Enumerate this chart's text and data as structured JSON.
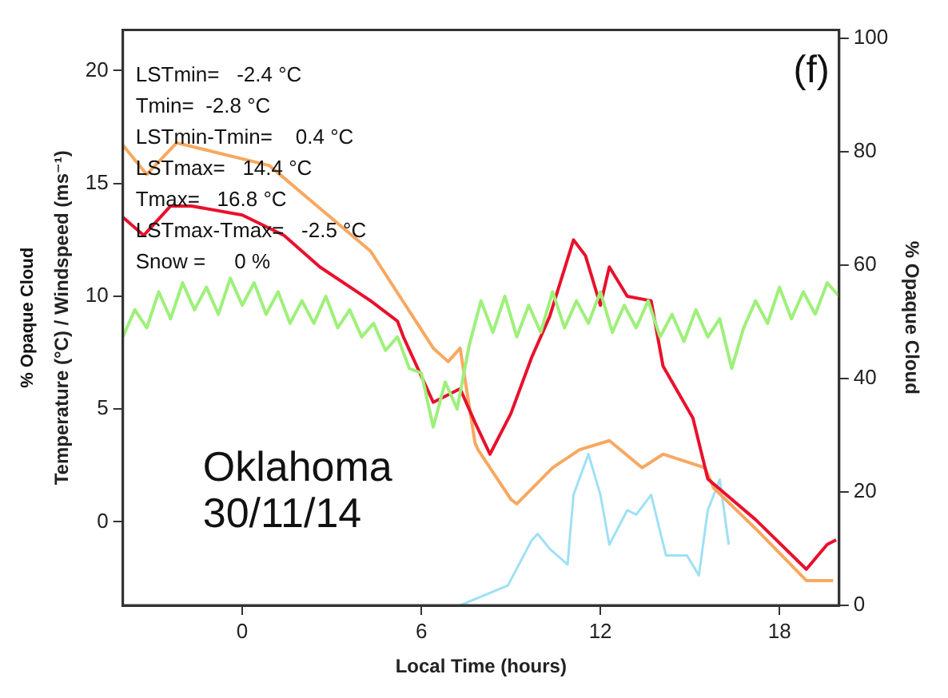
{
  "chart_data": {
    "type": "line",
    "xlabel": "Local Time (hours)",
    "ylabel": "Temperature (°C) / Windspeed (ms⁻¹)",
    "y2label": "% Opaque Cloud",
    "xlim": [
      -4,
      20
    ],
    "xticks": [
      0,
      6,
      12,
      18
    ],
    "ylim": [
      -3.7,
      21.8
    ],
    "yticks": [
      0,
      5,
      10,
      15,
      20
    ],
    "y2lim": [
      0,
      101.5
    ],
    "y2ticks": [
      0,
      20,
      40,
      60,
      80,
      100
    ],
    "grid": false,
    "legend": false,
    "marker": "none",
    "line_style": "solid",
    "annotations": [
      "LSTmin=   -2.4 °C",
      "Tmin=  -2.8 °C",
      "LSTmin-Tmin=    0.4 °C",
      "LSTmax=   14.4 °C",
      "Tmax=   16.8 °C",
      "LSTmax-Tmax=   -2.5 °C",
      "Snow =     0 %",
      "(f)",
      "Oklahoma",
      "30/11/14",
      "% Opaque Cloud"
    ],
    "series": [
      {
        "color": "#9ef07a",
        "x": [
          -4,
          -3.6,
          -3.2,
          -2.8,
          -2.4,
          -2,
          -1.6,
          -1.2,
          -0.8,
          -0.4,
          0,
          0.4,
          0.8,
          1.2,
          1.6,
          2,
          2.4,
          2.8,
          3.2,
          3.6,
          4,
          4.4,
          4.8,
          5.2,
          5.6,
          6,
          6.4,
          6.8,
          7.2,
          7.6,
          8,
          8.4,
          8.8,
          9.2,
          9.6,
          10,
          10.4,
          10.8,
          11.2,
          11.6,
          12,
          12.4,
          12.8,
          13.2,
          13.6,
          14,
          14.4,
          14.8,
          15.2,
          15.6,
          16,
          16.4,
          16.8,
          17.2,
          17.6,
          18,
          18.4,
          18.8,
          19.2,
          19.6,
          20
        ],
        "values": [
          8.2,
          9.4,
          8.6,
          10.2,
          9.0,
          10.6,
          9.4,
          10.4,
          9.2,
          10.8,
          9.6,
          10.6,
          9.2,
          10.2,
          8.8,
          9.8,
          8.8,
          10.0,
          8.6,
          9.4,
          8.2,
          8.8,
          7.6,
          8.2,
          6.8,
          6.6,
          4.2,
          6.2,
          5.0,
          7.8,
          9.8,
          8.4,
          10.0,
          8.2,
          9.6,
          8.4,
          10.2,
          8.6,
          9.8,
          8.8,
          10.2,
          8.4,
          9.6,
          8.6,
          9.8,
          8.2,
          9.2,
          8.0,
          9.4,
          8.2,
          9.0,
          6.8,
          8.6,
          9.8,
          8.8,
          10.4,
          9.0,
          10.2,
          9.2,
          10.6,
          10.0
        ]
      },
      {
        "color": "#e8112d",
        "x": [
          -4,
          -3.3,
          -2.4,
          -1.7,
          0,
          1.4,
          2.6,
          4.3,
          5.2,
          5.4,
          6.4,
          7.3,
          7.8,
          8.3,
          9.0,
          9.7,
          10.3,
          11.1,
          11.5,
          12.0,
          12.3,
          12.9,
          13.7,
          14.1,
          15.1,
          15.6,
          17.2,
          18.9,
          19.6,
          19.9
        ],
        "values": [
          13.5,
          12.7,
          14.0,
          14.0,
          13.6,
          12.7,
          11.3,
          9.8,
          8.9,
          8.2,
          5.3,
          5.9,
          4.4,
          3.0,
          4.8,
          7.3,
          9.1,
          12.5,
          11.8,
          9.6,
          11.3,
          10.0,
          9.8,
          6.9,
          4.6,
          1.9,
          0.1,
          -2.1,
          -1.0,
          -0.8
        ]
      },
      {
        "color": "#f8a860",
        "x": [
          -4,
          -3.2,
          -2.2,
          0.9,
          4.3,
          6.4,
          6.9,
          7.3,
          7.8,
          7.9,
          9.0,
          9.2,
          10.4,
          11.3,
          12.3,
          13.4,
          14.1,
          15.5,
          15.8,
          17.2,
          18.9,
          19.8
        ],
        "values": [
          16.7,
          15.4,
          16.8,
          15.8,
          12.0,
          7.7,
          7.1,
          7.7,
          3.5,
          3.2,
          1.0,
          0.8,
          2.4,
          3.2,
          3.6,
          2.4,
          3.0,
          2.4,
          1.5,
          -0.3,
          -2.6,
          -2.6
        ]
      },
      {
        "color": "#9ee0f5",
        "axis": "y2",
        "x": [
          7.3,
          8.9,
          9.7,
          9.9,
          10.3,
          10.9,
          11.1,
          11.6,
          12.0,
          12.3,
          12.9,
          13.2,
          13.7,
          14.2,
          14.9,
          15.3,
          15.6,
          16.0,
          16.3
        ],
        "values": [
          0,
          3.5,
          11.5,
          12.6,
          10,
          7.2,
          19.5,
          26.7,
          19.5,
          10.7,
          16.8,
          16,
          19.5,
          8.8,
          8.8,
          5.3,
          16.8,
          22.2,
          10.7
        ]
      }
    ]
  }
}
